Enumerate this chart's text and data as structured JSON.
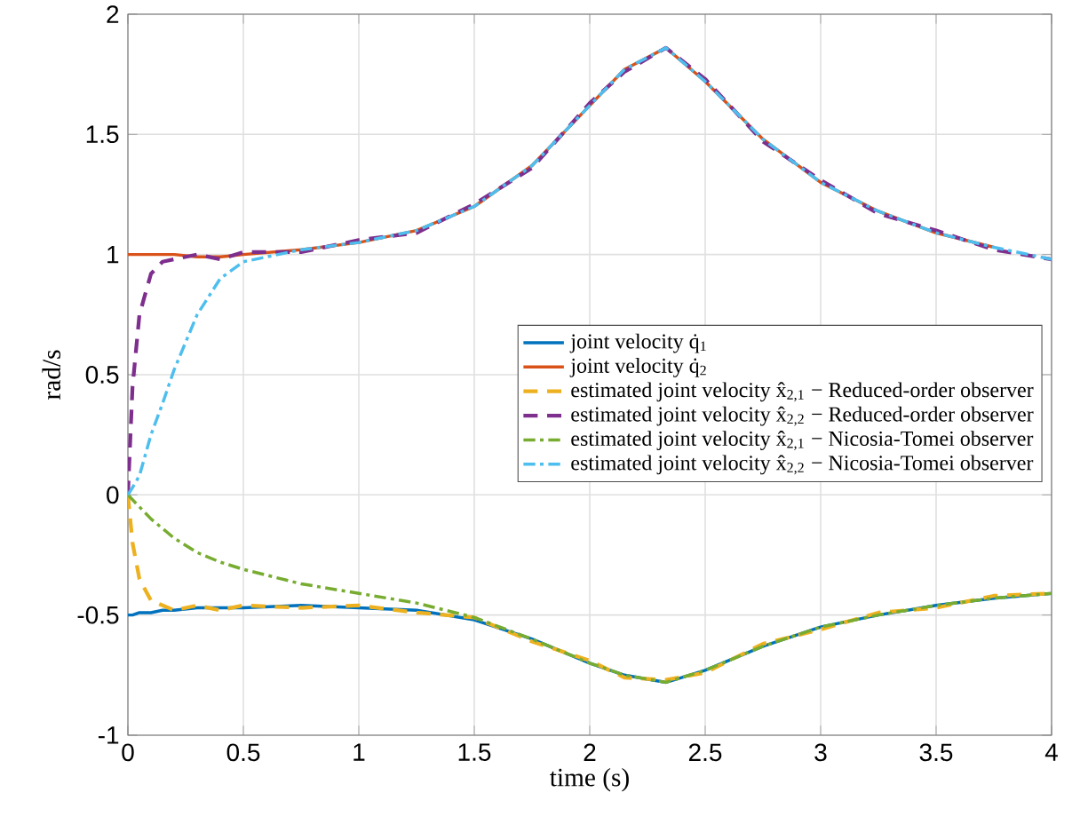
{
  "chart_data": {
    "type": "line",
    "xlabel": "time (s)",
    "ylabel": "rad/s",
    "xlim": [
      0,
      4
    ],
    "ylim": [
      -1,
      2
    ],
    "xticks": [
      0,
      0.5,
      1,
      1.5,
      2,
      2.5,
      3,
      3.5,
      4
    ],
    "yticks": [
      -1,
      -0.5,
      0,
      0.5,
      1,
      1.5,
      2
    ],
    "grid": true,
    "legend": "right",
    "marker": "none",
    "x": [
      0,
      0.02,
      0.05,
      0.1,
      0.15,
      0.2,
      0.3,
      0.4,
      0.5,
      0.75,
      1,
      1.25,
      1.5,
      1.75,
      2,
      2.15,
      2.33,
      2.5,
      2.75,
      3,
      3.25,
      3.5,
      3.75,
      4
    ],
    "series": [
      {
        "name": "joint velocity q̇$_{1}$",
        "color": "#0072bd",
        "line_style": "solid",
        "values": [
          -0.5,
          -0.5,
          -0.49,
          -0.49,
          -0.48,
          -0.48,
          -0.47,
          -0.47,
          -0.47,
          -0.46,
          -0.47,
          -0.48,
          -0.52,
          -0.6,
          -0.7,
          -0.75,
          -0.78,
          -0.73,
          -0.63,
          -0.55,
          -0.5,
          -0.46,
          -0.43,
          -0.41
        ]
      },
      {
        "name": "joint velocity q̇$_{2}$",
        "color": "#d95319",
        "line_style": "solid",
        "values": [
          1,
          1,
          1,
          1,
          1,
          1,
          0.99,
          0.99,
          1,
          1.02,
          1.05,
          1.1,
          1.2,
          1.37,
          1.62,
          1.77,
          1.86,
          1.72,
          1.48,
          1.3,
          1.18,
          1.09,
          1.03,
          null
        ]
      },
      {
        "name": "estimated joint velocity x̂$_{2,1}$ − Reduced-order observer",
        "color": "#edb120",
        "line_style": "dashed",
        "values": [
          0,
          -0.2,
          -0.35,
          -0.44,
          -0.46,
          -0.48,
          -0.46,
          -0.48,
          -0.46,
          -0.47,
          -0.46,
          -0.49,
          -0.51,
          -0.61,
          -0.69,
          -0.76,
          -0.77,
          -0.74,
          -0.62,
          -0.56,
          -0.49,
          -0.47,
          -0.42,
          -0.41
        ]
      },
      {
        "name": "estimated joint velocity x̂$_{2,2}$ − Reduced-order observer",
        "color": "#7e2f8e",
        "line_style": "dashed",
        "values": [
          0,
          0.45,
          0.75,
          0.92,
          0.97,
          0.98,
          1.0,
          0.98,
          1.01,
          1.01,
          1.06,
          1.09,
          1.21,
          1.36,
          1.63,
          1.76,
          1.86,
          1.73,
          1.47,
          1.31,
          1.17,
          1.1,
          1.02,
          0.98
        ]
      },
      {
        "name": "estimated joint velocity x̂$_{2,1}$ − Nicosia-Tomei observer",
        "color": "#77ac30",
        "line_style": "dashdot",
        "values": [
          0,
          -0.02,
          -0.05,
          -0.1,
          -0.14,
          -0.18,
          -0.24,
          -0.28,
          -0.31,
          -0.37,
          -0.41,
          -0.45,
          -0.51,
          -0.6,
          -0.7,
          -0.75,
          -0.78,
          -0.73,
          -0.63,
          -0.55,
          -0.5,
          -0.46,
          -0.43,
          -0.41
        ]
      },
      {
        "name": "estimated joint velocity x̂$_{2,2}$ − Nicosia-Tomei observer",
        "color": "#4dbeee",
        "line_style": "dashdot",
        "values": [
          0,
          0.03,
          0.08,
          0.25,
          0.38,
          0.52,
          0.75,
          0.9,
          0.97,
          1.02,
          1.05,
          1.1,
          1.2,
          1.37,
          1.62,
          1.77,
          1.86,
          1.72,
          1.48,
          1.3,
          1.18,
          1.09,
          1.03,
          0.98
        ]
      }
    ]
  }
}
